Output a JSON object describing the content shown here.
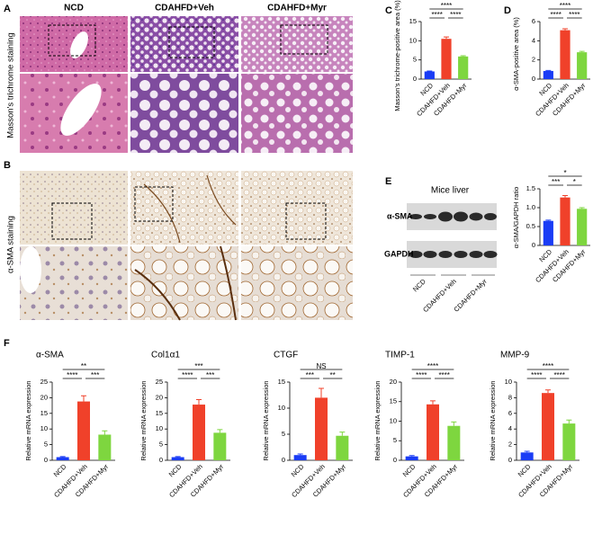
{
  "figure": {
    "panel_labels": [
      "A",
      "B",
      "C",
      "D",
      "E",
      "F"
    ],
    "column_headers": [
      "NCD",
      "CDAHFD+Veh",
      "CDAHFD+Myr"
    ],
    "row_labels": [
      "Masson's trichrome staining",
      "α-SMA staining"
    ],
    "blot": {
      "title": "Mice liver",
      "bands": [
        "α-SMA",
        "GAPDH"
      ],
      "lanes": [
        "NCD",
        "CDAHFD+Veh",
        "CDAHFD+Myr"
      ]
    }
  },
  "chart_data": [
    {
      "type": "bar",
      "y_label": "Masson's trichrome-positive area (%)",
      "categories": [
        "NCD",
        "CDAHFD+Veh",
        "CDAHFD+Myr"
      ],
      "values": [
        2,
        10.5,
        5.9
      ],
      "errors": [
        0.1,
        0.5,
        0.2
      ],
      "colors": [
        "#1a3cf5",
        "#f0412a",
        "#7ed63f"
      ],
      "ylim": [
        0,
        15
      ],
      "yticks": [
        0,
        5,
        10,
        15
      ],
      "annotations": [
        "****",
        "****",
        "****"
      ]
    },
    {
      "type": "bar",
      "y_label": "α-SMA-positive area (%)",
      "categories": [
        "NCD",
        "CDAHFD+Veh",
        "CDAHFD+Myr"
      ],
      "values": [
        0.85,
        5.1,
        2.8
      ],
      "errors": [
        0.05,
        0.15,
        0.1
      ],
      "colors": [
        "#1a3cf5",
        "#f0412a",
        "#7ed63f"
      ],
      "ylim": [
        0,
        6
      ],
      "yticks": [
        0,
        2,
        4,
        6
      ],
      "annotations": [
        "****",
        "****",
        "****"
      ]
    },
    {
      "type": "bar",
      "y_label": "α-SMA/GAPDH ratio",
      "categories": [
        "NCD",
        "CDAHFD+Veh",
        "CDAHFD+Myr"
      ],
      "values": [
        0.65,
        1.27,
        0.97
      ],
      "errors": [
        0.02,
        0.05,
        0.03
      ],
      "colors": [
        "#1a3cf5",
        "#f0412a",
        "#7ed63f"
      ],
      "ylim": [
        0,
        1.5
      ],
      "yticks": [
        0,
        0.5,
        {
          "value": 1.0,
          "label": "1.0"
        },
        1.5
      ],
      "annotations": [
        "***",
        "*",
        "*"
      ]
    },
    {
      "type": "bar",
      "title": "α-SMA",
      "y_label": "Relative mRNA expression",
      "categories": [
        "NCD",
        "CDAHFD+Veh",
        "CDAHFD+Myr"
      ],
      "values": [
        1,
        18.8,
        8.2
      ],
      "errors": [
        0.2,
        1.8,
        1.2
      ],
      "colors": [
        "#1a3cf5",
        "#f0412a",
        "#7ed63f"
      ],
      "ylim": [
        0,
        25
      ],
      "yticks": [
        0,
        5,
        10,
        15,
        20,
        25
      ],
      "annotations": [
        "****",
        "***",
        "**"
      ]
    },
    {
      "type": "bar",
      "title": "Col1α1",
      "y_label": "Relative mRNA expression",
      "categories": [
        "NCD",
        "CDAHFD+Veh",
        "CDAHFD+Myr"
      ],
      "values": [
        1,
        17.8,
        8.8
      ],
      "errors": [
        0.2,
        1.6,
        1.0
      ],
      "colors": [
        "#1a3cf5",
        "#f0412a",
        "#7ed63f"
      ],
      "ylim": [
        0,
        25
      ],
      "yticks": [
        0,
        5,
        10,
        15,
        20,
        25
      ],
      "annotations": [
        "****",
        "***",
        "***"
      ]
    },
    {
      "type": "bar",
      "title": "CTGF",
      "y_label": "Relative mRNA expression",
      "categories": [
        "NCD",
        "CDAHFD+Veh",
        "CDAHFD+Myr"
      ],
      "values": [
        1,
        12,
        4.7
      ],
      "errors": [
        0.2,
        1.8,
        0.7
      ],
      "colors": [
        "#1a3cf5",
        "#f0412a",
        "#7ed63f"
      ],
      "ylim": [
        0,
        15
      ],
      "yticks": [
        0,
        5,
        10,
        15
      ],
      "annotations": [
        "***",
        "**",
        "NS"
      ]
    },
    {
      "type": "bar",
      "title": "TIMP-1",
      "y_label": "Relative mRNA expression",
      "categories": [
        "NCD",
        "CDAHFD+Veh",
        "CDAHFD+Myr"
      ],
      "values": [
        1,
        14.3,
        8.8
      ],
      "errors": [
        0.2,
        0.9,
        1.0
      ],
      "colors": [
        "#1a3cf5",
        "#f0412a",
        "#7ed63f"
      ],
      "ylim": [
        0,
        20
      ],
      "yticks": [
        0,
        5,
        10,
        15,
        20
      ],
      "annotations": [
        "****",
        "****",
        "****"
      ]
    },
    {
      "type": "bar",
      "title": "MMP-9",
      "y_label": "Relative mRNA expression",
      "categories": [
        "NCD",
        "CDAHFD+Veh",
        "CDAHFD+Myr"
      ],
      "values": [
        1,
        8.6,
        4.7
      ],
      "errors": [
        0.15,
        0.4,
        0.45
      ],
      "colors": [
        "#1a3cf5",
        "#f0412a",
        "#7ed63f"
      ],
      "ylim": [
        0,
        10
      ],
      "yticks": [
        0,
        2,
        4,
        6,
        8,
        10
      ],
      "annotations": [
        "****",
        "****",
        "****"
      ]
    }
  ]
}
